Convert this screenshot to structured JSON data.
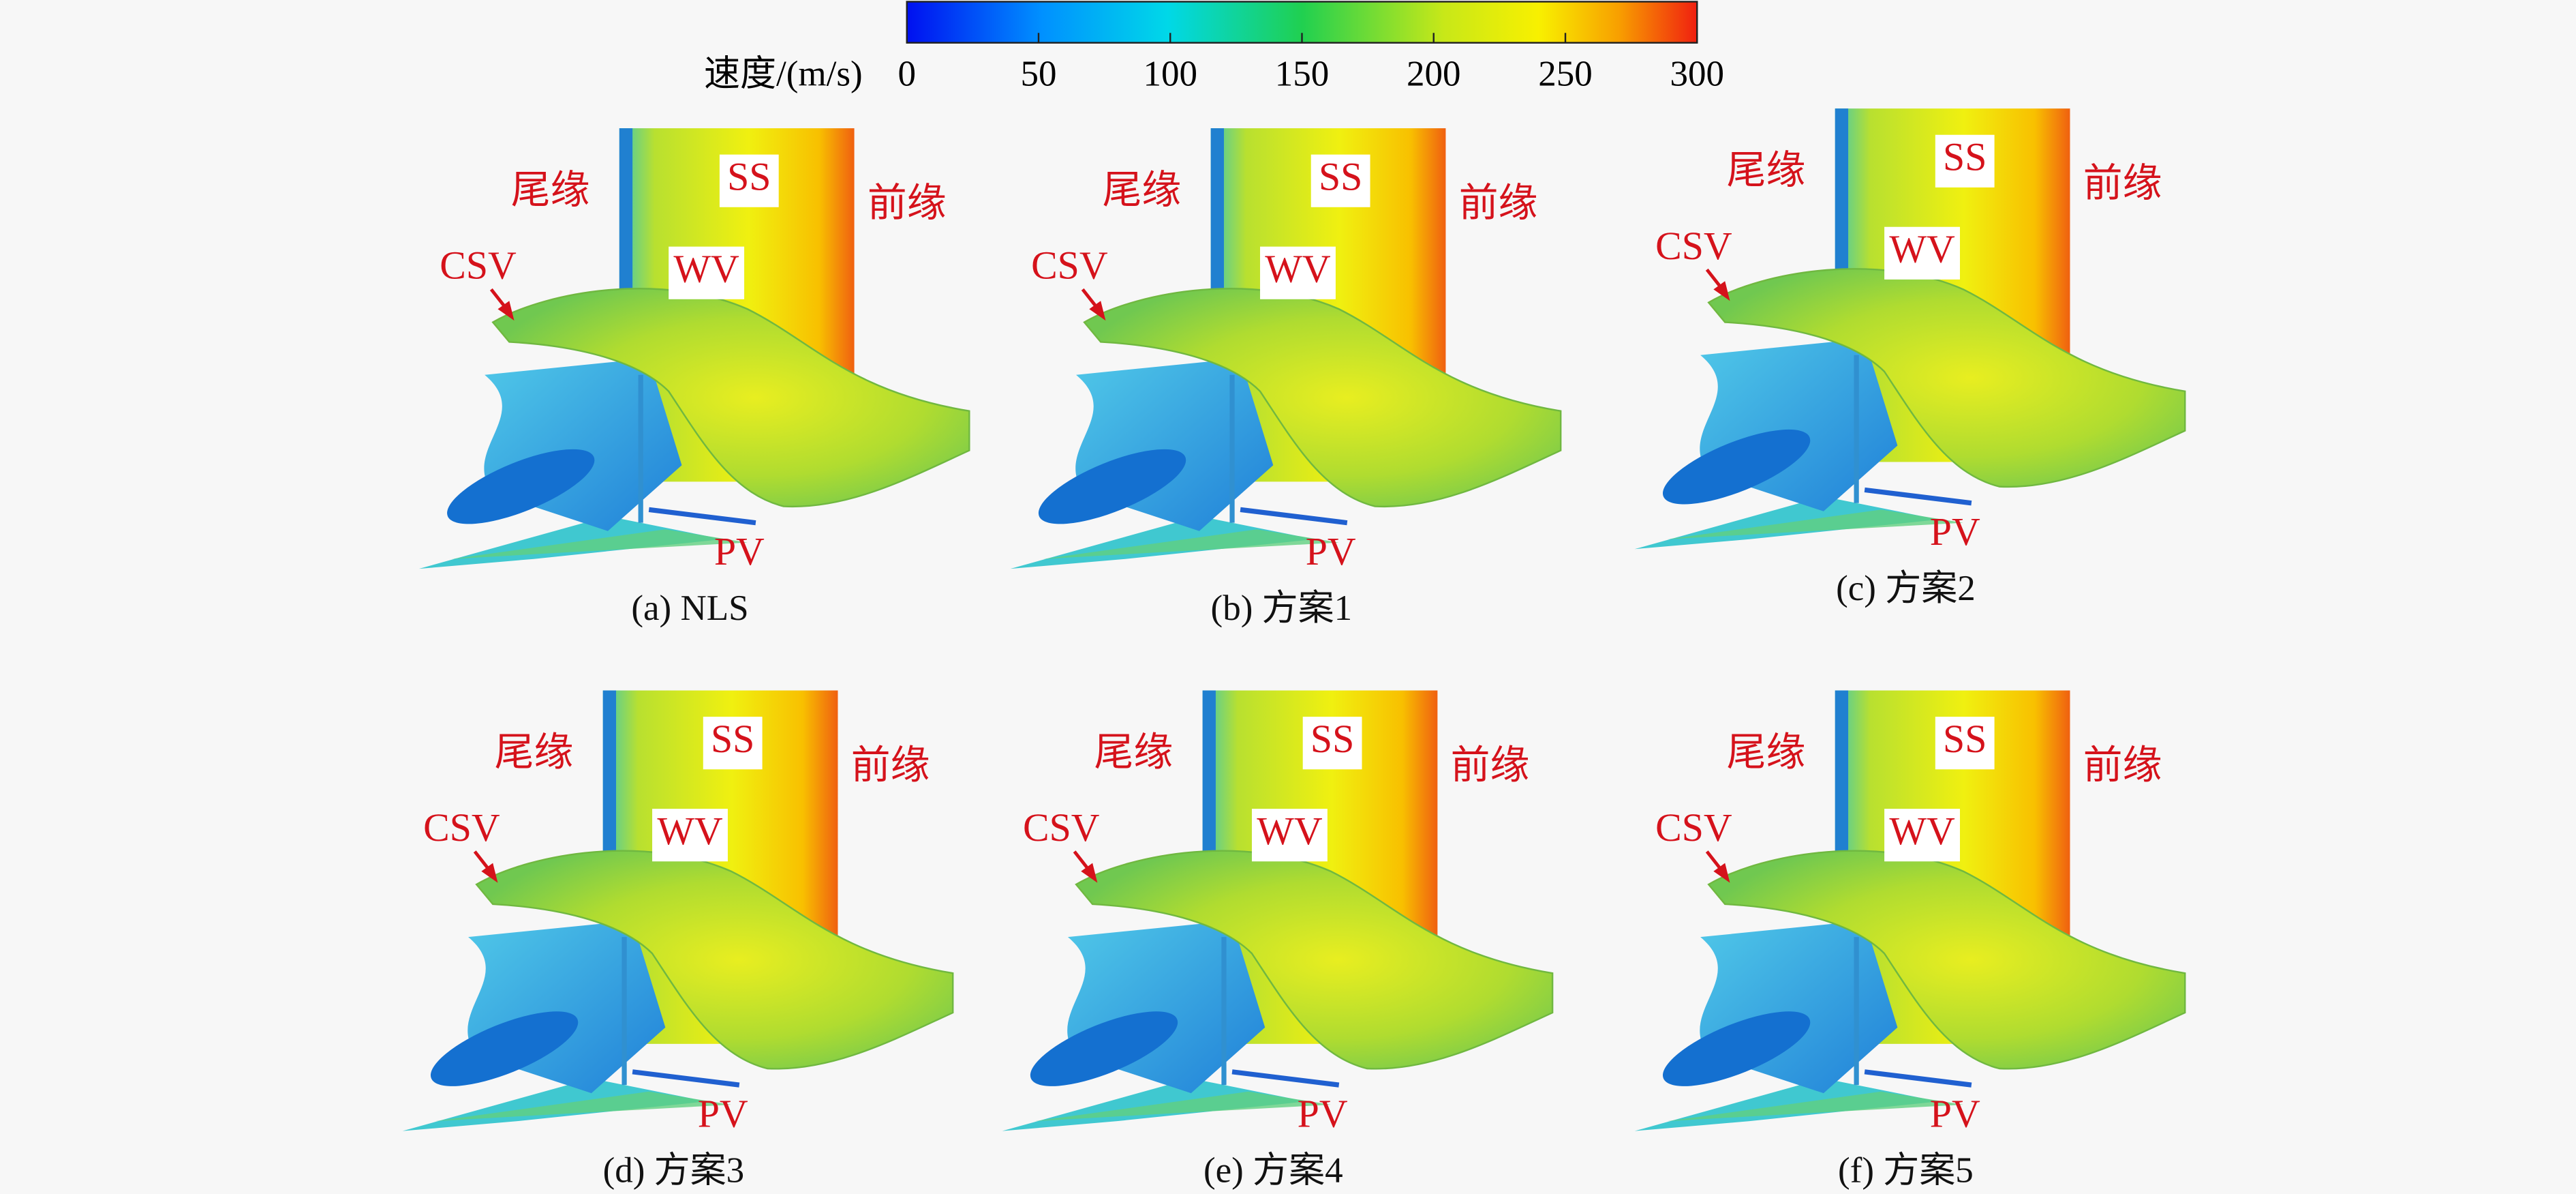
{
  "colorbar": {
    "label": "速度/(m/s)",
    "range": [
      0,
      300
    ],
    "ticks": [
      0,
      50,
      100,
      150,
      200,
      250,
      300
    ]
  },
  "panels": [
    {
      "caption": "(a) NLS",
      "labels": {
        "trailing_edge": "尾缘",
        "suction_side": "SS",
        "leading_edge": "前缘",
        "csv": "CSV",
        "wv": "WV",
        "pv": "PV"
      }
    },
    {
      "caption": "(b) 方案1",
      "labels": {
        "trailing_edge": "尾缘",
        "suction_side": "SS",
        "leading_edge": "前缘",
        "csv": "CSV",
        "wv": "WV",
        "pv": "PV"
      }
    },
    {
      "caption": "(c) 方案2",
      "labels": {
        "trailing_edge": "尾缘",
        "suction_side": "SS",
        "leading_edge": "前缘",
        "csv": "CSV",
        "wv": "WV",
        "pv": "PV"
      }
    },
    {
      "caption": "(d) 方案3",
      "labels": {
        "trailing_edge": "尾缘",
        "suction_side": "SS",
        "leading_edge": "前缘",
        "csv": "CSV",
        "wv": "WV",
        "pv": "PV"
      }
    },
    {
      "caption": "(e) 方案4",
      "labels": {
        "trailing_edge": "尾缘",
        "suction_side": "SS",
        "leading_edge": "前缘",
        "csv": "CSV",
        "wv": "WV",
        "pv": "PV"
      }
    },
    {
      "caption": "(f) 方案5",
      "labels": {
        "trailing_edge": "尾缘",
        "suction_side": "SS",
        "leading_edge": "前缘",
        "csv": "CSV",
        "wv": "WV",
        "pv": "PV"
      }
    }
  ]
}
